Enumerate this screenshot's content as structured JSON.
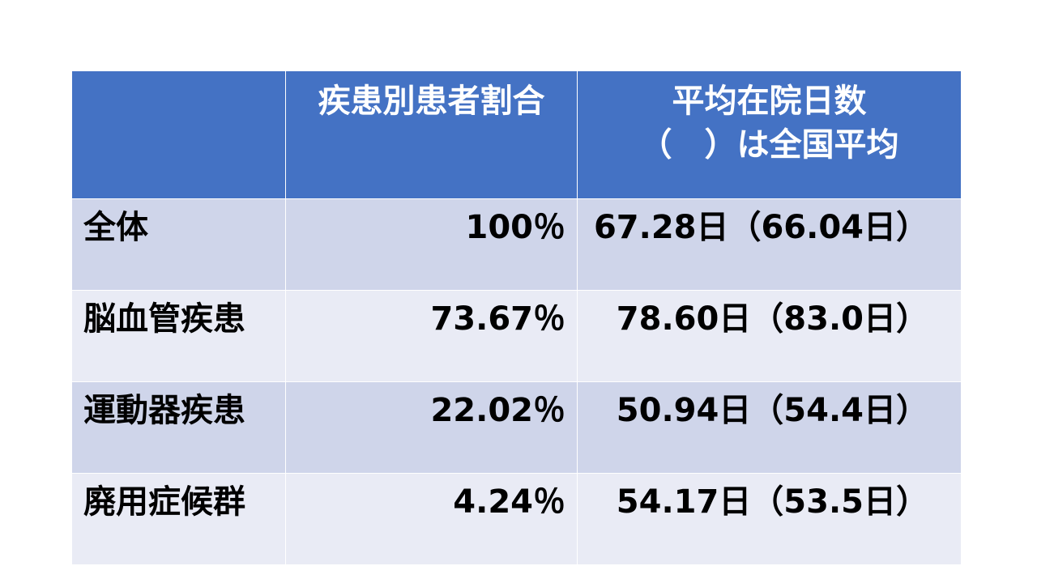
{
  "table": {
    "header": {
      "share": "疾患別患者割合",
      "stay": [
        "平均在院日数",
        "（　）は全国平均"
      ]
    },
    "rows": [
      [
        "全体",
        "100％",
        "67.28日（66.04日）"
      ],
      [
        "脳血管疾患",
        "73.67％",
        "78.60日（83.0日）"
      ],
      [
        "運動器疾患",
        "22.02％",
        "50.94日（54.4日）"
      ],
      [
        "廃用症候群",
        "4.24％",
        "54.17日（53.5日）"
      ]
    ]
  }
}
